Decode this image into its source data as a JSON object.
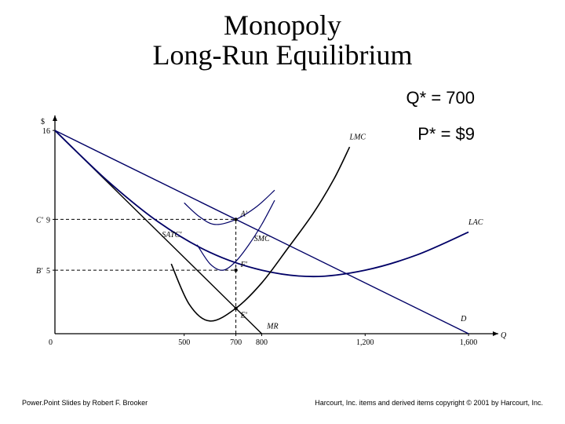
{
  "title_line1": "Monopoly",
  "title_line2": "Long-Run Equilibrium",
  "q_star": "Q* = 700",
  "p_star": "P* = $9",
  "footer_left": "Power.Point Slides by Robert F. Brooker",
  "footer_right": "Harcourt, Inc. items and derived items copyright © 2001 by Harcourt, Inc.",
  "chart": {
    "type": "economics-diagram",
    "xlim": [
      0,
      1700
    ],
    "ylim": [
      0,
      17
    ],
    "x_ticks": [
      0,
      500,
      700,
      800,
      1200,
      1600
    ],
    "y_ticks": [
      0,
      5,
      9,
      16
    ],
    "y_label": "$",
    "x_label": "Q",
    "axis_color": "#000000",
    "background_color": "#ffffff",
    "font_axis_size": 10,
    "font_curve_label_size": 10,
    "demand": {
      "label": "D",
      "color": "#000066",
      "width": 1.4,
      "p1": [
        0,
        16
      ],
      "p2": [
        1600,
        0
      ]
    },
    "mr": {
      "label": "MR",
      "color": "#000000",
      "width": 1.4,
      "p1": [
        0,
        16
      ],
      "p2": [
        800,
        0
      ]
    },
    "lmc": {
      "label": "LMC",
      "color": "#000000",
      "width": 1.6,
      "points": [
        [
          450,
          5.5
        ],
        [
          520,
          2.3
        ],
        [
          600,
          1.0
        ],
        [
          700,
          2.0
        ],
        [
          800,
          4.0
        ],
        [
          900,
          6.7
        ],
        [
          1000,
          9.5
        ],
        [
          1080,
          12.2
        ],
        [
          1140,
          14.7
        ]
      ]
    },
    "lac": {
      "label": "LAC",
      "color": "#000066",
      "width": 1.8,
      "points": [
        [
          0,
          16
        ],
        [
          200,
          12.1
        ],
        [
          400,
          8.8
        ],
        [
          600,
          6.4
        ],
        [
          800,
          5.0
        ],
        [
          1000,
          4.5
        ],
        [
          1200,
          5.0
        ],
        [
          1400,
          6.2
        ],
        [
          1600,
          8.0
        ]
      ]
    },
    "satc": {
      "label": "SATC'",
      "color": "#000066",
      "width": 1.2,
      "points": [
        [
          500,
          10.3
        ],
        [
          560,
          9.2
        ],
        [
          620,
          8.6
        ],
        [
          700,
          9.0
        ],
        [
          780,
          10.0
        ],
        [
          850,
          11.3
        ]
      ]
    },
    "smc": {
      "label": "SMC",
      "color": "#000066",
      "width": 1.2,
      "points": [
        [
          550,
          7.0
        ],
        [
          600,
          5.5
        ],
        [
          650,
          5.0
        ],
        [
          700,
          5.7
        ],
        [
          750,
          7.0
        ],
        [
          800,
          8.6
        ],
        [
          850,
          10.5
        ]
      ]
    },
    "dashed": {
      "color": "#000000",
      "dash": "4,3",
      "width": 1,
      "h9": {
        "y": 9,
        "x_to": 700
      },
      "h5": {
        "y": 5,
        "x_to": 700
      },
      "v700": {
        "x": 700,
        "y_to": 9
      }
    },
    "points": {
      "A": {
        "x": 700,
        "y": 9,
        "label": "A'"
      },
      "F": {
        "x": 700,
        "y": 5,
        "label": "F'"
      },
      "E": {
        "x": 700,
        "y": 2,
        "label": "E'"
      },
      "C": {
        "x": 0,
        "y": 9,
        "label": "C'",
        "offset": "left"
      },
      "B": {
        "x": 0,
        "y": 5,
        "label": "B'",
        "offset": "left"
      }
    }
  }
}
